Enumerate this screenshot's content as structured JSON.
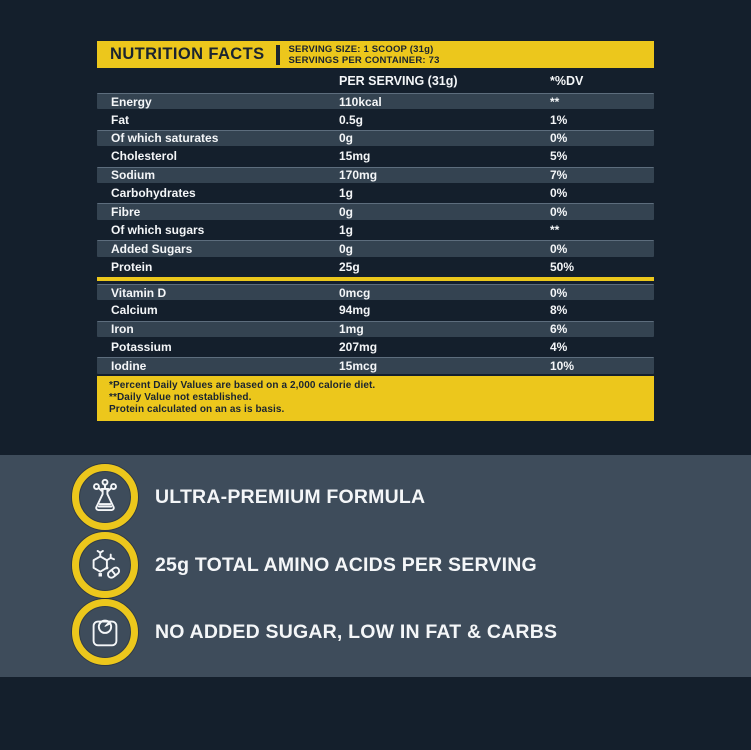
{
  "colors": {
    "navy": "#141f2c",
    "stripe": "#344351",
    "slate": "#3e4c5b",
    "yellow": "#ecc71c",
    "ink": "#f4f6f8",
    "dark-ink": "#1a2430"
  },
  "table": {
    "title": "NUTRITION FACTS",
    "serving_size": "SERVING SIZE: 1 SCOOP (31g)",
    "servings_per_container": "SERVINGS PER CONTAINER: 73",
    "col_headers": {
      "per_serving": "PER SERVING (31g)",
      "dv": "*%DV"
    },
    "rows": [
      {
        "label": "Energy",
        "value": "110kcal",
        "dv": "**",
        "striped": true
      },
      {
        "label": "Fat",
        "value": "0.5g",
        "dv": "1%",
        "striped": false
      },
      {
        "label": "Of which saturates",
        "value": "0g",
        "dv": "0%",
        "striped": true
      },
      {
        "label": "Cholesterol",
        "value": "15mg",
        "dv": "5%",
        "striped": false
      },
      {
        "label": "Sodium",
        "value": "170mg",
        "dv": "7%",
        "striped": true
      },
      {
        "label": "Carbohydrates",
        "value": "1g",
        "dv": "0%",
        "striped": false
      },
      {
        "label": "Fibre",
        "value": "0g",
        "dv": "0%",
        "striped": true
      },
      {
        "label": "Of which sugars",
        "value": "1g",
        "dv": "**",
        "striped": false
      },
      {
        "label": "Added Sugars",
        "value": "0g",
        "dv": "0%",
        "striped": true
      },
      {
        "label": "Protein",
        "value": "25g",
        "dv": "50%",
        "striped": false,
        "divider_after": true
      },
      {
        "label": "Vitamin D",
        "value": "0mcg",
        "dv": "0%",
        "striped": true
      },
      {
        "label": "Calcium",
        "value": "94mg",
        "dv": "8%",
        "striped": false
      },
      {
        "label": "Iron",
        "value": "1mg",
        "dv": "6%",
        "striped": true
      },
      {
        "label": "Potassium",
        "value": "207mg",
        "dv": "4%",
        "striped": false
      },
      {
        "label": "Iodine",
        "value": "15mcg",
        "dv": "10%",
        "striped": true
      }
    ],
    "footnotes": [
      "*Percent Daily Values are based on a 2,000 calorie diet.",
      "**Daily Value not established.",
      "Protein calculated on an as is basis."
    ]
  },
  "features": [
    {
      "icon": "flask-molecule-icon",
      "label": "ULTRA-PREMIUM FORMULA"
    },
    {
      "icon": "molecule-capsule-icon",
      "label": "25g TOTAL AMINO ACIDS PER SERVING"
    },
    {
      "icon": "weight-scale-icon",
      "label": "NO ADDED SUGAR, LOW IN FAT & CARBS"
    }
  ]
}
